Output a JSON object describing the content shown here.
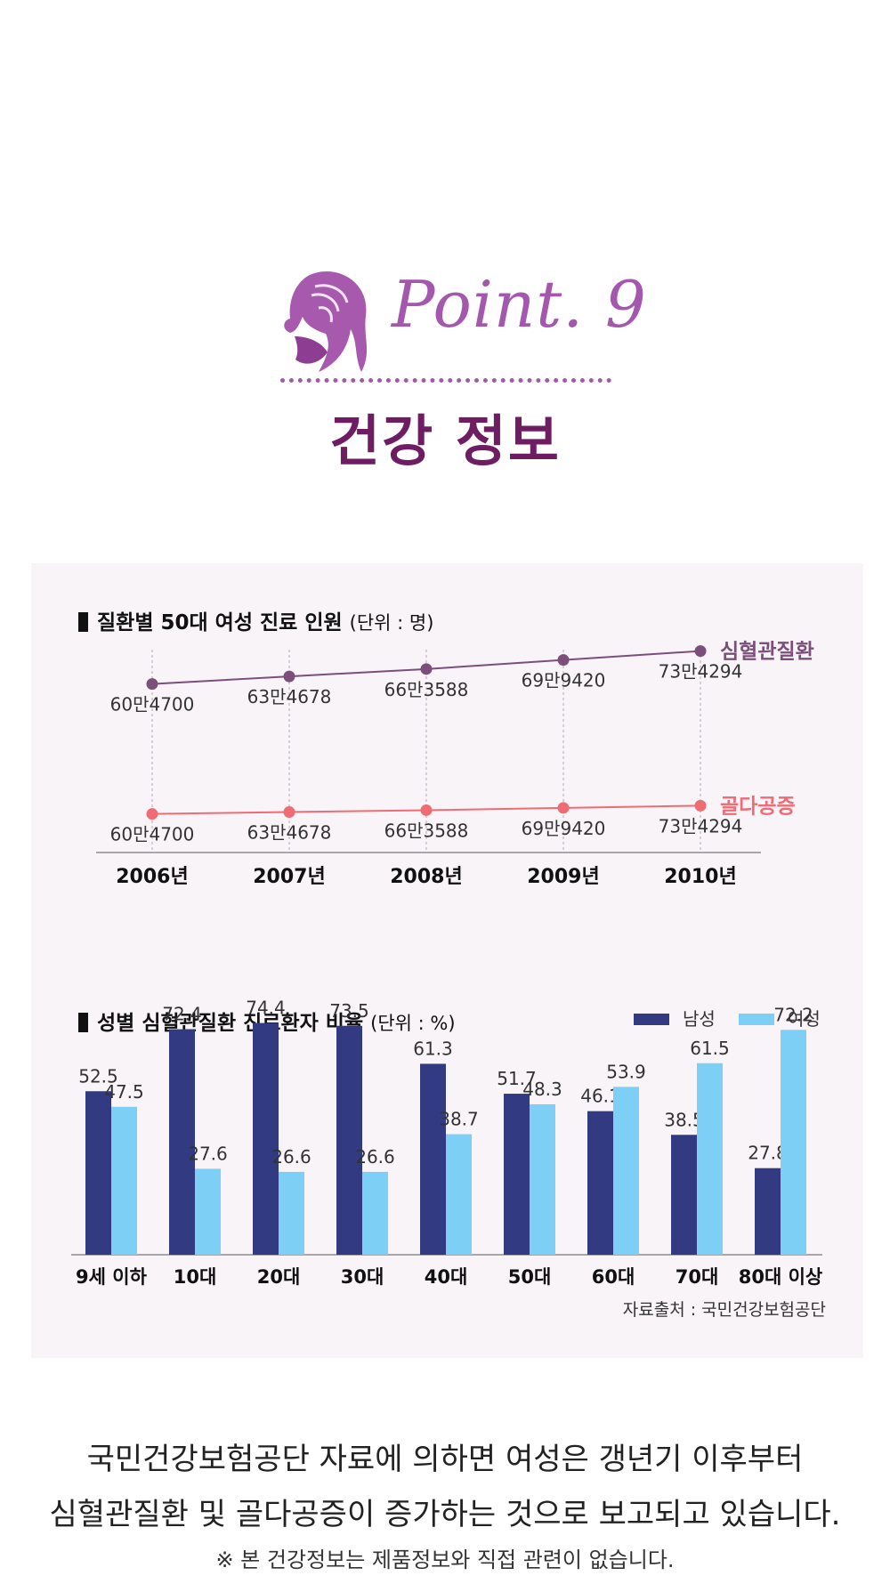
{
  "header": {
    "point_label": "Point. 9",
    "main_title": "건강 정보"
  },
  "line_section": {
    "title": "질환별 50대 여성 진료 인원",
    "unit": "(단위 : 명)"
  },
  "bar_section": {
    "title": "성별 심혈관질환 진료환자 비율",
    "unit": "(단위 : %)"
  },
  "chart_data": [
    {
      "type": "line",
      "title": "질환별 50대 여성 진료 인원",
      "unit": "(단위 : 명)",
      "categories": [
        "2006년",
        "2007년",
        "2008년",
        "2009년",
        "2010년"
      ],
      "series": [
        {
          "name": "심혈관질환",
          "color": "#7b4f7a",
          "values": [
            604700,
            634678,
            663588,
            699420,
            734294
          ],
          "labels": [
            "60만4700",
            "63만4678",
            "66만3588",
            "69만9420",
            "73만4294"
          ]
        },
        {
          "name": "골다공증",
          "color": "#ef6c74",
          "values": [
            604700,
            634678,
            663588,
            699420,
            734294
          ],
          "labels": [
            "60만4700",
            "63만4678",
            "66만3588",
            "69만9420",
            "73만4294"
          ]
        }
      ]
    },
    {
      "type": "bar",
      "title": "성별 심혈관질환 진료환자 비율",
      "unit": "(단위 : %)",
      "categories": [
        "9세 이하",
        "10대",
        "20대",
        "30대",
        "40대",
        "50대",
        "60대",
        "70대",
        "80대 이상"
      ],
      "ylim": [
        0,
        80
      ],
      "legend_position": "top-right",
      "series": [
        {
          "name": "남성",
          "color": "#323b82",
          "values": [
            52.5,
            72.4,
            74.4,
            73.5,
            61.3,
            51.7,
            46.1,
            38.5,
            27.8
          ]
        },
        {
          "name": "여성",
          "color": "#7ecff5",
          "values": [
            47.5,
            27.6,
            26.6,
            26.6,
            38.7,
            48.3,
            53.9,
            61.5,
            72.2
          ]
        }
      ]
    }
  ],
  "source": "자료출처 : 국민건강보험공단",
  "body_text": {
    "line1": "국민건강보험공단 자료에 의하면 여성은 갱년기 이후부터",
    "line2": "심혈관질환 및 골다공증이 증가하는 것으로 보고되고 있습니다.",
    "note": "※ 본 건강정보는 제품정보와 직접 관련이 없습니다."
  }
}
